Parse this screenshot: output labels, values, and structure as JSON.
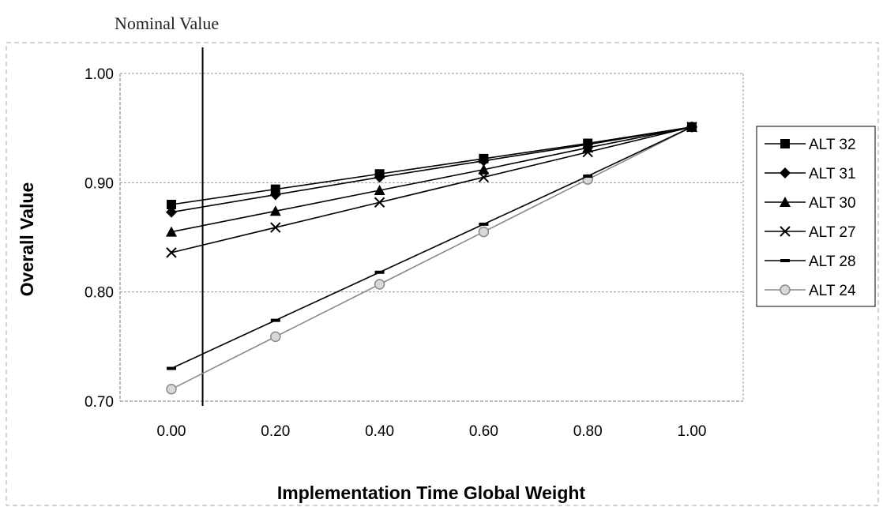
{
  "annotation": {
    "label": "Nominal Value",
    "x": 0.06
  },
  "chart_data": {
    "type": "line",
    "title": "",
    "xlabel": "Implementation Time Global Weight",
    "ylabel": "Overall Value",
    "x": [
      0.0,
      0.2,
      0.4,
      0.6,
      0.8,
      1.0
    ],
    "x_tick_labels": [
      "0.00",
      "0.20",
      "0.40",
      "0.60",
      "0.80",
      "1.00"
    ],
    "y_ticks": [
      0.7,
      0.8,
      0.9,
      1.0
    ],
    "y_tick_labels": [
      "0.70",
      "0.80",
      "0.90",
      "1.00"
    ],
    "xlim": [
      0.0,
      1.0
    ],
    "ylim": [
      0.7,
      1.0
    ],
    "grid": "horizontal",
    "legend": "right",
    "series": [
      {
        "name": "ALT 32",
        "marker": "square",
        "color": "#000000",
        "values": [
          0.88,
          0.894,
          0.908,
          0.922,
          0.936,
          0.951
        ]
      },
      {
        "name": "ALT 31",
        "marker": "diamond",
        "color": "#000000",
        "values": [
          0.873,
          0.889,
          0.905,
          0.92,
          0.935,
          0.951
        ]
      },
      {
        "name": "ALT 30",
        "marker": "triangle",
        "color": "#000000",
        "values": [
          0.855,
          0.874,
          0.893,
          0.912,
          0.932,
          0.951
        ]
      },
      {
        "name": "ALT 27",
        "marker": "x",
        "color": "#000000",
        "values": [
          0.836,
          0.859,
          0.882,
          0.905,
          0.928,
          0.951
        ]
      },
      {
        "name": "ALT 28",
        "marker": "dash",
        "color": "#000000",
        "values": [
          0.73,
          0.774,
          0.818,
          0.862,
          0.906,
          0.951
        ]
      },
      {
        "name": "ALT 24",
        "marker": "circle",
        "color": "#8a8a8a",
        "values": [
          0.711,
          0.759,
          0.807,
          0.855,
          0.903,
          0.951
        ]
      }
    ]
  }
}
